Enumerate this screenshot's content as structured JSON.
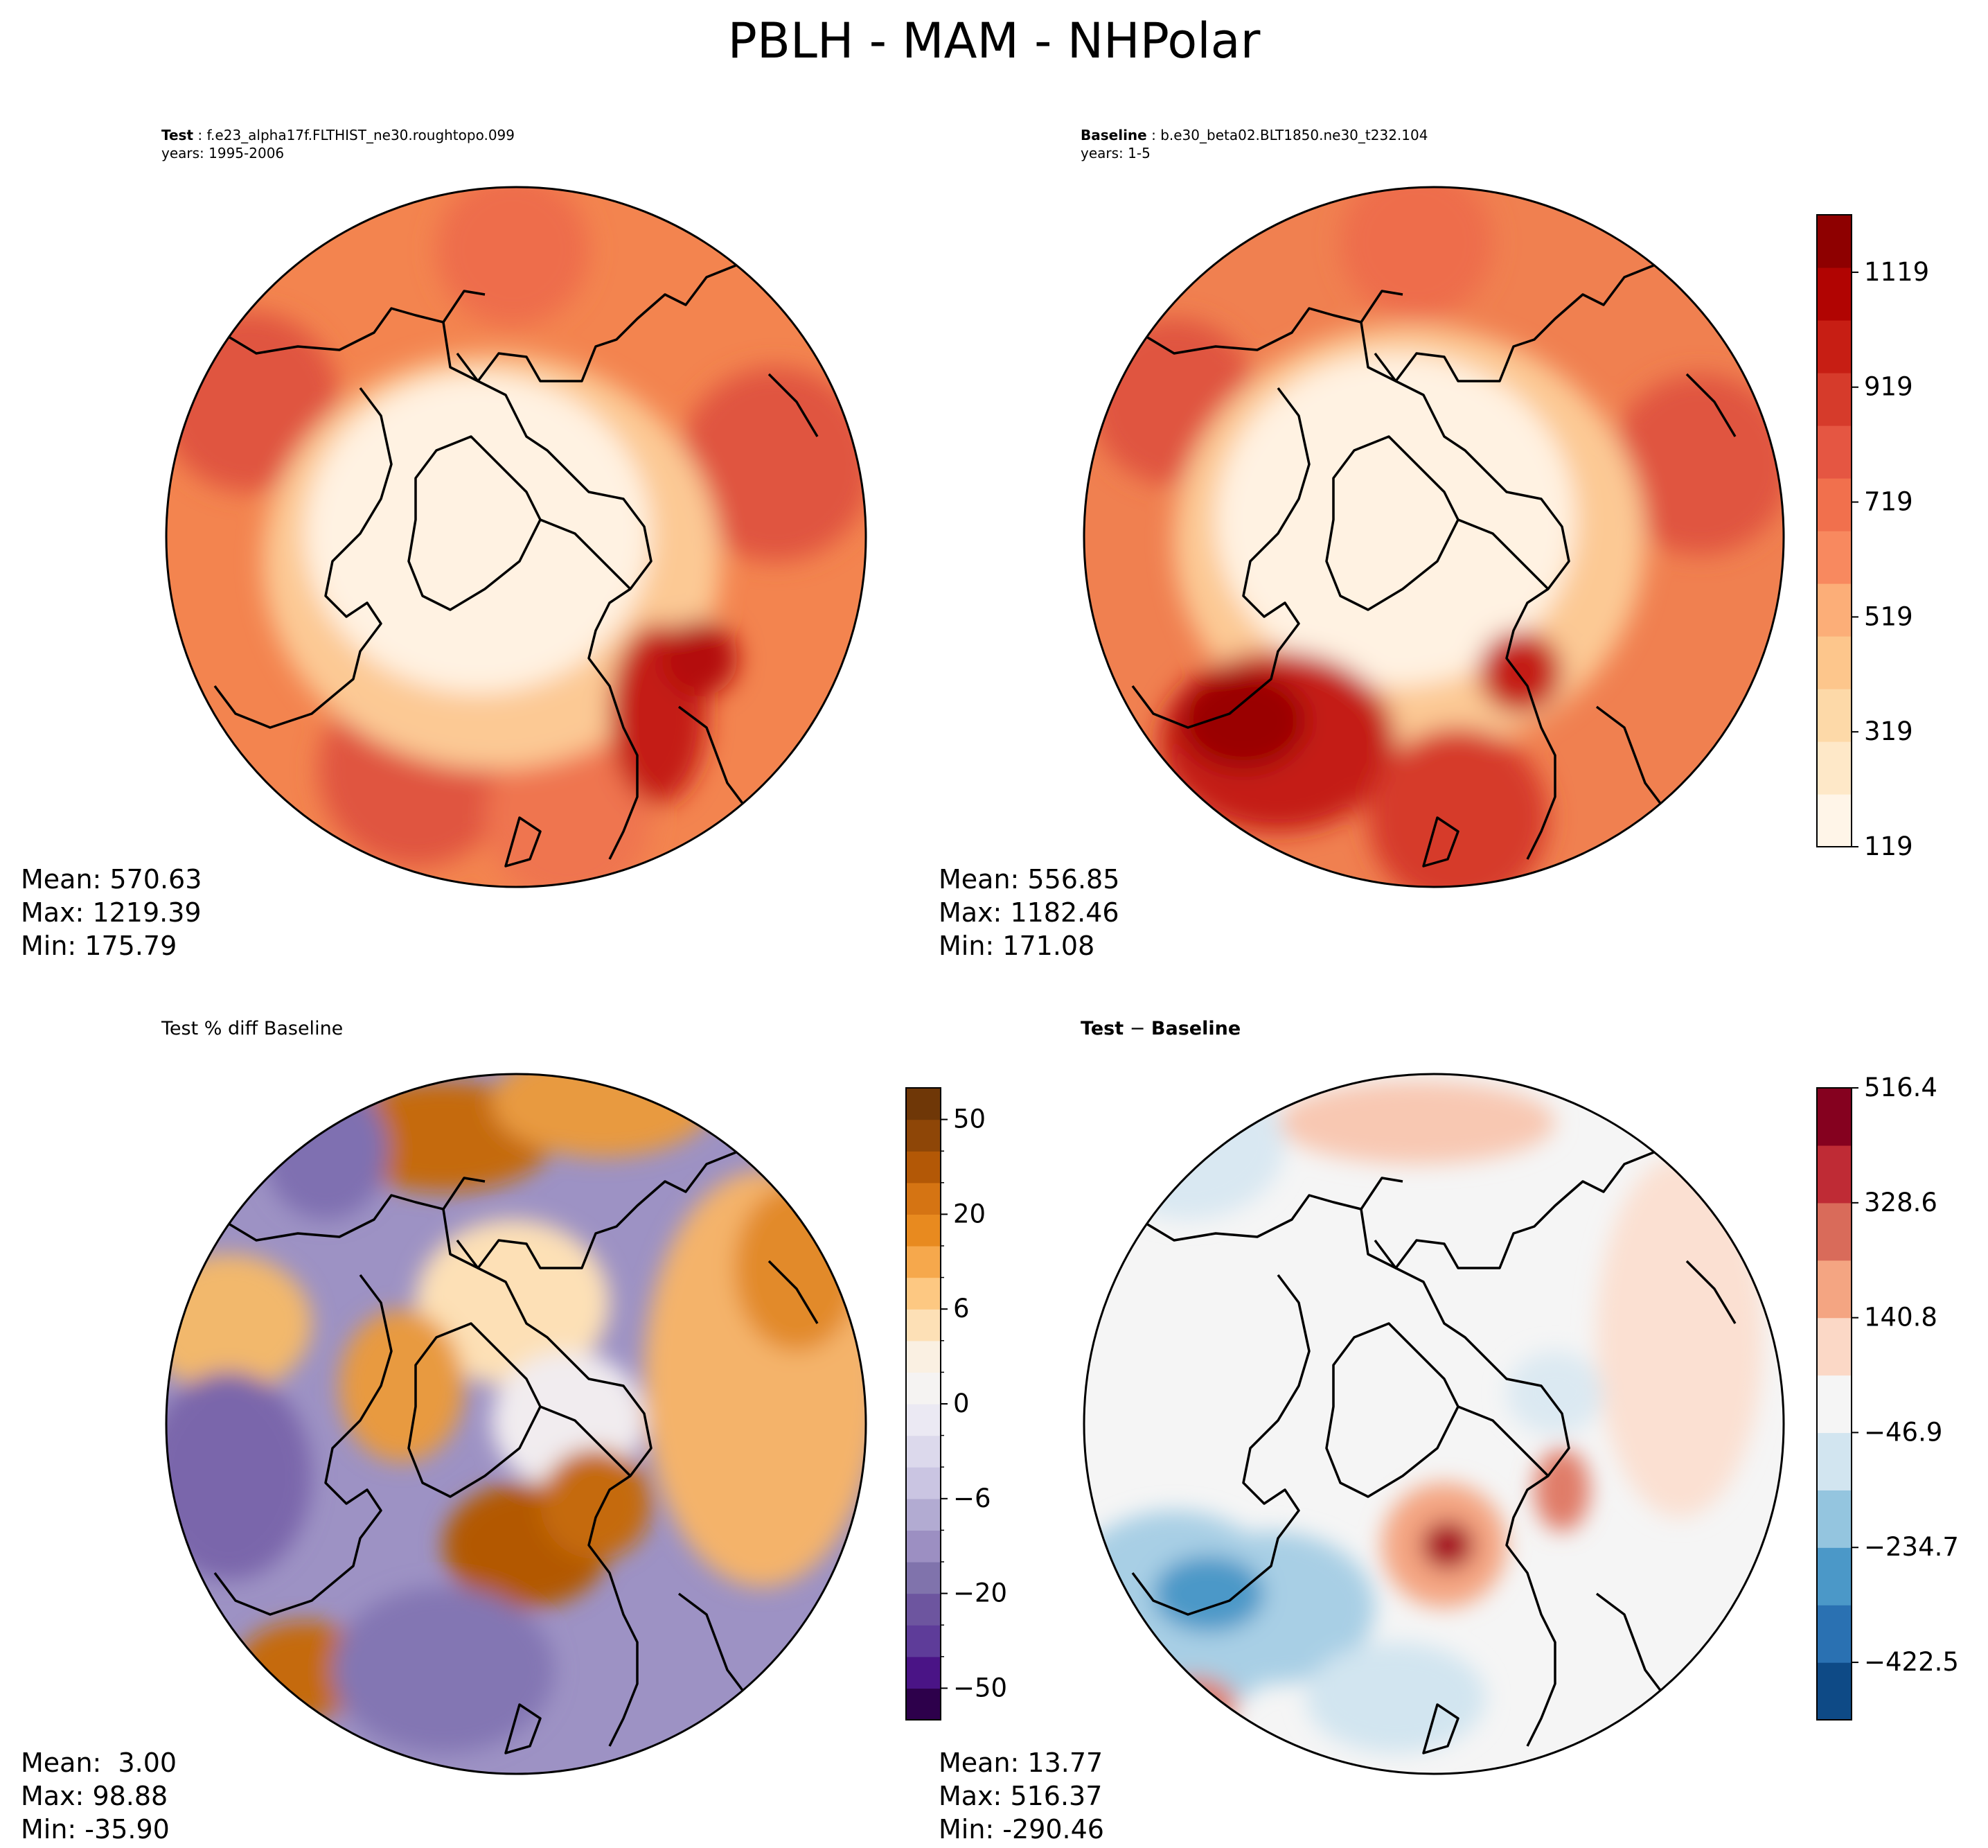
{
  "figure": {
    "title": "PBLH - MAM - NHPolar"
  },
  "chart_data": [
    {
      "type": "heatmap",
      "projection": "north polar stereographic",
      "title_label": "Test",
      "title_sep": " : ",
      "case_name": "f.e23_alpha17f.FLTHIST_ne30.roughtopo.099",
      "years": "years: 1995-2006",
      "stats": {
        "mean": "Mean: 570.63",
        "max": "Max: 1219.39",
        "min": "Min: 175.79"
      },
      "colormap": "OrRd",
      "levels": [
        119,
        219,
        319,
        419,
        519,
        619,
        719,
        819,
        919,
        1019,
        1119,
        1219
      ]
    },
    {
      "type": "heatmap",
      "projection": "north polar stereographic",
      "title_label": "Baseline",
      "title_sep": " : ",
      "case_name": "b.e30_beta02.BLT1850.ne30_t232.104",
      "years": "years: 1-5",
      "stats": {
        "mean": "Mean: 556.85",
        "max": "Max: 1182.46",
        "min": "Min: 171.08"
      },
      "colormap": "OrRd",
      "levels": [
        119,
        219,
        319,
        419,
        519,
        619,
        719,
        819,
        919,
        1019,
        1119,
        1219
      ],
      "colorbar": {
        "ticks": [
          "1119",
          "919",
          "719",
          "519",
          "319",
          "119"
        ],
        "tick_values": [
          1119,
          919,
          719,
          519,
          319,
          119
        ],
        "range": [
          119,
          1219
        ],
        "colors": [
          "#fff5e8",
          "#fee8c8",
          "#fdd9a8",
          "#fdc68c",
          "#fcae78",
          "#f8895f",
          "#f1704d",
          "#e55642",
          "#d63b2b",
          "#c71e14",
          "#b10402",
          "#8e0000"
        ]
      }
    },
    {
      "type": "heatmap",
      "projection": "north polar stereographic",
      "title": "Test % diff Baseline",
      "stats": {
        "mean": "Mean:  3.00",
        "max": "Max: 98.88",
        "min": "Min: -35.90"
      },
      "colormap": "PuOr_r",
      "colorbar": {
        "ticks": [
          "50",
          "20",
          "6",
          "0",
          "−6",
          "−20",
          "−50"
        ],
        "tick_values": [
          50,
          20,
          6,
          0,
          -6,
          -20,
          -50
        ],
        "colors": [
          "#2d004b",
          "#4a1486",
          "#5e3c99",
          "#6d559f",
          "#8073ac",
          "#9c8fc2",
          "#b2abd2",
          "#cac5e2",
          "#dcd9ec",
          "#ebe9f3",
          "#f5f3f2",
          "#faf0e2",
          "#fde0b6",
          "#fdc882",
          "#f6a84c",
          "#e88a1f",
          "#d57413",
          "#b35806",
          "#8e4607",
          "#6f3707"
        ]
      }
    },
    {
      "type": "heatmap",
      "projection": "north polar stereographic",
      "title_label": "Test",
      "title_op": " − ",
      "title_label2": "Baseline",
      "stats": {
        "mean": "Mean: 13.77",
        "max": "Max: 516.37",
        "min": "Min: -290.46"
      },
      "colormap": "RdBu_r",
      "colorbar": {
        "ticks": [
          "516.4",
          "328.6",
          "140.8",
          "−46.9",
          "−234.7",
          "−422.5"
        ],
        "tick_values": [
          516.4,
          328.6,
          140.8,
          -46.9,
          -234.7,
          -422.5
        ],
        "range": [
          -516.4,
          516.4
        ],
        "colors": [
          "#0e4a86",
          "#2a71b2",
          "#4b98c8",
          "#94c5df",
          "#d2e5f0",
          "#f5f5f5",
          "#fbd8c6",
          "#f4a582",
          "#d96b5a",
          "#bf2b35",
          "#85011f"
        ]
      }
    }
  ]
}
